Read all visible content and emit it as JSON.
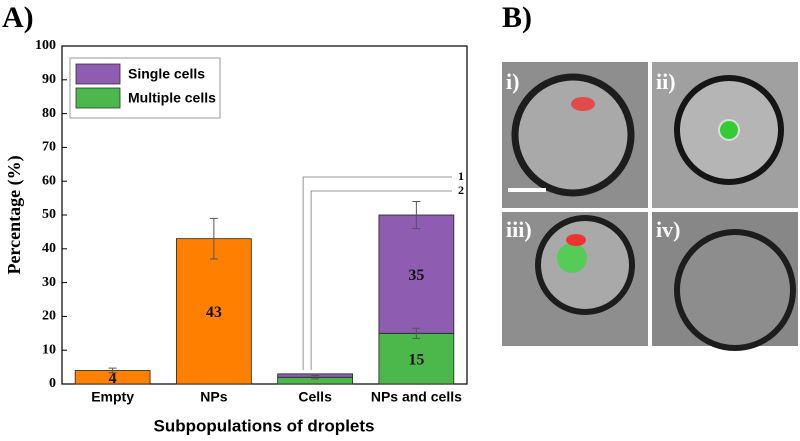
{
  "panel_a": {
    "label": "A)"
  },
  "chart_data": {
    "type": "stacked_bar",
    "x_label": "Subpopulations of droplets",
    "y_label": "Percentage (%)",
    "categories": [
      "Empty",
      "NPs",
      "Cells",
      "NPs and cells"
    ],
    "series": [
      {
        "color": "#ff8000",
        "values": [
          4,
          43,
          null,
          null
        ],
        "errors": [
          0.7,
          6,
          null,
          null
        ]
      },
      {
        "name": "Multiple cells",
        "color": "#4cb84c",
        "values": [
          null,
          null,
          2,
          15
        ],
        "errors": [
          null,
          null,
          0.5,
          1.5
        ]
      },
      {
        "name": "Single cells",
        "color": "#8e5cb0",
        "values": [
          null,
          null,
          1,
          35
        ],
        "errors": [
          null,
          null,
          null,
          4
        ]
      }
    ],
    "ylim": [
      0,
      100
    ],
    "yticks": [
      0,
      10,
      20,
      30,
      40,
      50,
      60,
      70,
      80,
      90,
      100
    ],
    "annotations": [
      "1",
      "2"
    ],
    "legend": "upper-left"
  },
  "panel_b": {
    "label": "B)",
    "images": [
      "i)",
      "ii)",
      "iii)",
      "iv)"
    ]
  }
}
